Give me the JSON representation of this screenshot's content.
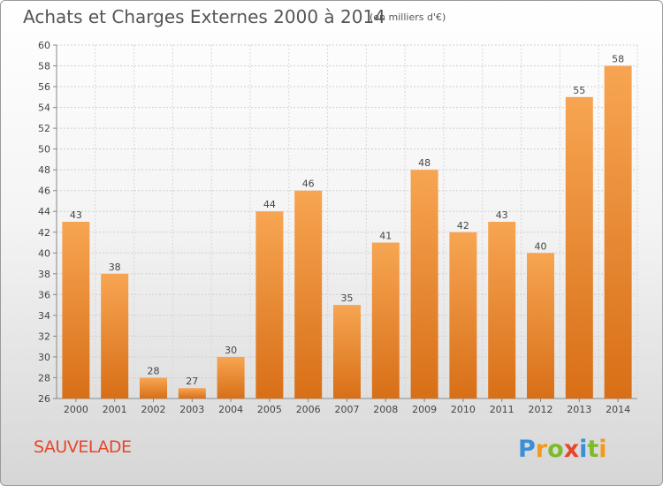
{
  "title": "Achats et Charges Externes 2000 à 2014",
  "subtitle": "(en milliers d'€)",
  "commune": "SAUVELADE",
  "logo_text": "Proxiti",
  "colors": {
    "bar_light": "#f7a552",
    "bar_dark": "#d86f17",
    "commune_text": "#e8452b"
  },
  "chart_data": {
    "type": "bar",
    "categories": [
      "2000",
      "2001",
      "2002",
      "2003",
      "2004",
      "2005",
      "2006",
      "2007",
      "2008",
      "2009",
      "2010",
      "2011",
      "2012",
      "2013",
      "2014"
    ],
    "values": [
      43,
      38,
      28,
      27,
      30,
      44,
      46,
      35,
      41,
      48,
      42,
      43,
      40,
      55,
      58
    ],
    "ylim": [
      26,
      60
    ],
    "yticks": [
      26,
      28,
      30,
      32,
      34,
      36,
      38,
      40,
      42,
      44,
      46,
      48,
      50,
      52,
      54,
      56,
      58,
      60
    ],
    "grid": true
  }
}
